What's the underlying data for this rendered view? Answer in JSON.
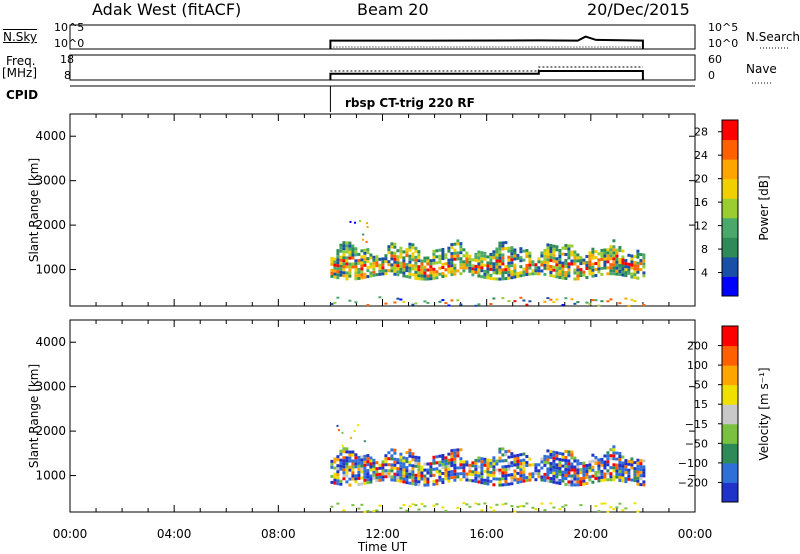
{
  "header": {
    "station": "Adak West (fitACF)",
    "beam": "Beam 20",
    "date": "20/Dec/2015"
  },
  "strip": {
    "nsky_label": "N.Sky",
    "nsearch_label": "N.Search",
    "freq_label": "Freq.",
    "freq_unit": "[MHz]",
    "nave_label": "Nave",
    "cpid_label": "CPID",
    "cpid_program": "rbsp CT-trig 220 RF",
    "noise_ticks": [
      "10^5",
      "10^0"
    ],
    "freq_ticks": [
      "18",
      "8"
    ],
    "nave_ticks": [
      "60",
      "0"
    ]
  },
  "colors": {
    "frame": "#000000",
    "power_scale": [
      "#0000ff",
      "#1a4fa8",
      "#2e8b57",
      "#4aa86b",
      "#9acd32",
      "#f0d000",
      "#ffa500",
      "#ff6000",
      "#ff0000"
    ],
    "velocity_scale": [
      "#2033c8",
      "#2e6fd8",
      "#2e8b57",
      "#7ac142",
      "#c8c8c8",
      "#f0e000",
      "#ffa500",
      "#ff6000",
      "#ff0000"
    ]
  },
  "chart_data": [
    {
      "type": "heatmap",
      "title": "Power",
      "ylabel": "Slant Range [km]",
      "xlabel": "Time UT",
      "x_ticks": [
        "00:00",
        "04:00",
        "08:00",
        "12:00",
        "16:00",
        "20:00",
        "00:00"
      ],
      "xlim": [
        0,
        24
      ],
      "ylim": [
        180,
        4500
      ],
      "y_ticks": [
        1000,
        2000,
        3000,
        4000
      ],
      "colorbar": {
        "label": "Power [dB]",
        "ticks": [
          4,
          8,
          12,
          16,
          20,
          24,
          28
        ],
        "range": [
          0,
          30
        ]
      },
      "data_extent": {
        "start_hour": 10.0,
        "end_hour": 22.0,
        "main_band_km": [
          800,
          1500
        ],
        "near_band_km": [
          200,
          400
        ],
        "main_band_value_db": [
          4,
          30
        ]
      }
    },
    {
      "type": "heatmap",
      "title": "Velocity",
      "ylabel": "Slant Range [km]",
      "xlabel": "Time UT",
      "x_ticks": [
        "00:00",
        "04:00",
        "08:00",
        "12:00",
        "16:00",
        "20:00",
        "00:00"
      ],
      "xlim": [
        0,
        24
      ],
      "ylim": [
        180,
        4500
      ],
      "y_ticks": [
        1000,
        2000,
        3000,
        4000
      ],
      "colorbar": {
        "label": "Velocity [m s⁻¹]",
        "ticks": [
          200,
          100,
          50,
          15,
          -15,
          -50,
          -100,
          -200
        ],
        "range": [
          -250,
          250
        ]
      },
      "data_extent": {
        "start_hour": 10.0,
        "end_hour": 22.0,
        "main_band_km": [
          800,
          1500
        ],
        "near_band_km": [
          200,
          400
        ]
      }
    },
    {
      "type": "line",
      "title": "N.Sky / N.Search",
      "ylim": [
        0,
        100000
      ],
      "scale": "log",
      "series": [
        {
          "x": [
            10.0,
            14.0,
            18.0,
            19.5,
            19.8,
            20.2,
            22.0
          ],
          "values": [
            40,
            40,
            45,
            40,
            400,
            60,
            40
          ]
        }
      ]
    },
    {
      "type": "line",
      "title": "Freq. / Nave",
      "ylim": [
        8,
        18
      ],
      "series": [
        {
          "x": [
            10.0,
            18.0,
            18.0,
            22.0
          ],
          "values": [
            10.5,
            10.5,
            11.6,
            11.6
          ]
        }
      ]
    }
  ]
}
